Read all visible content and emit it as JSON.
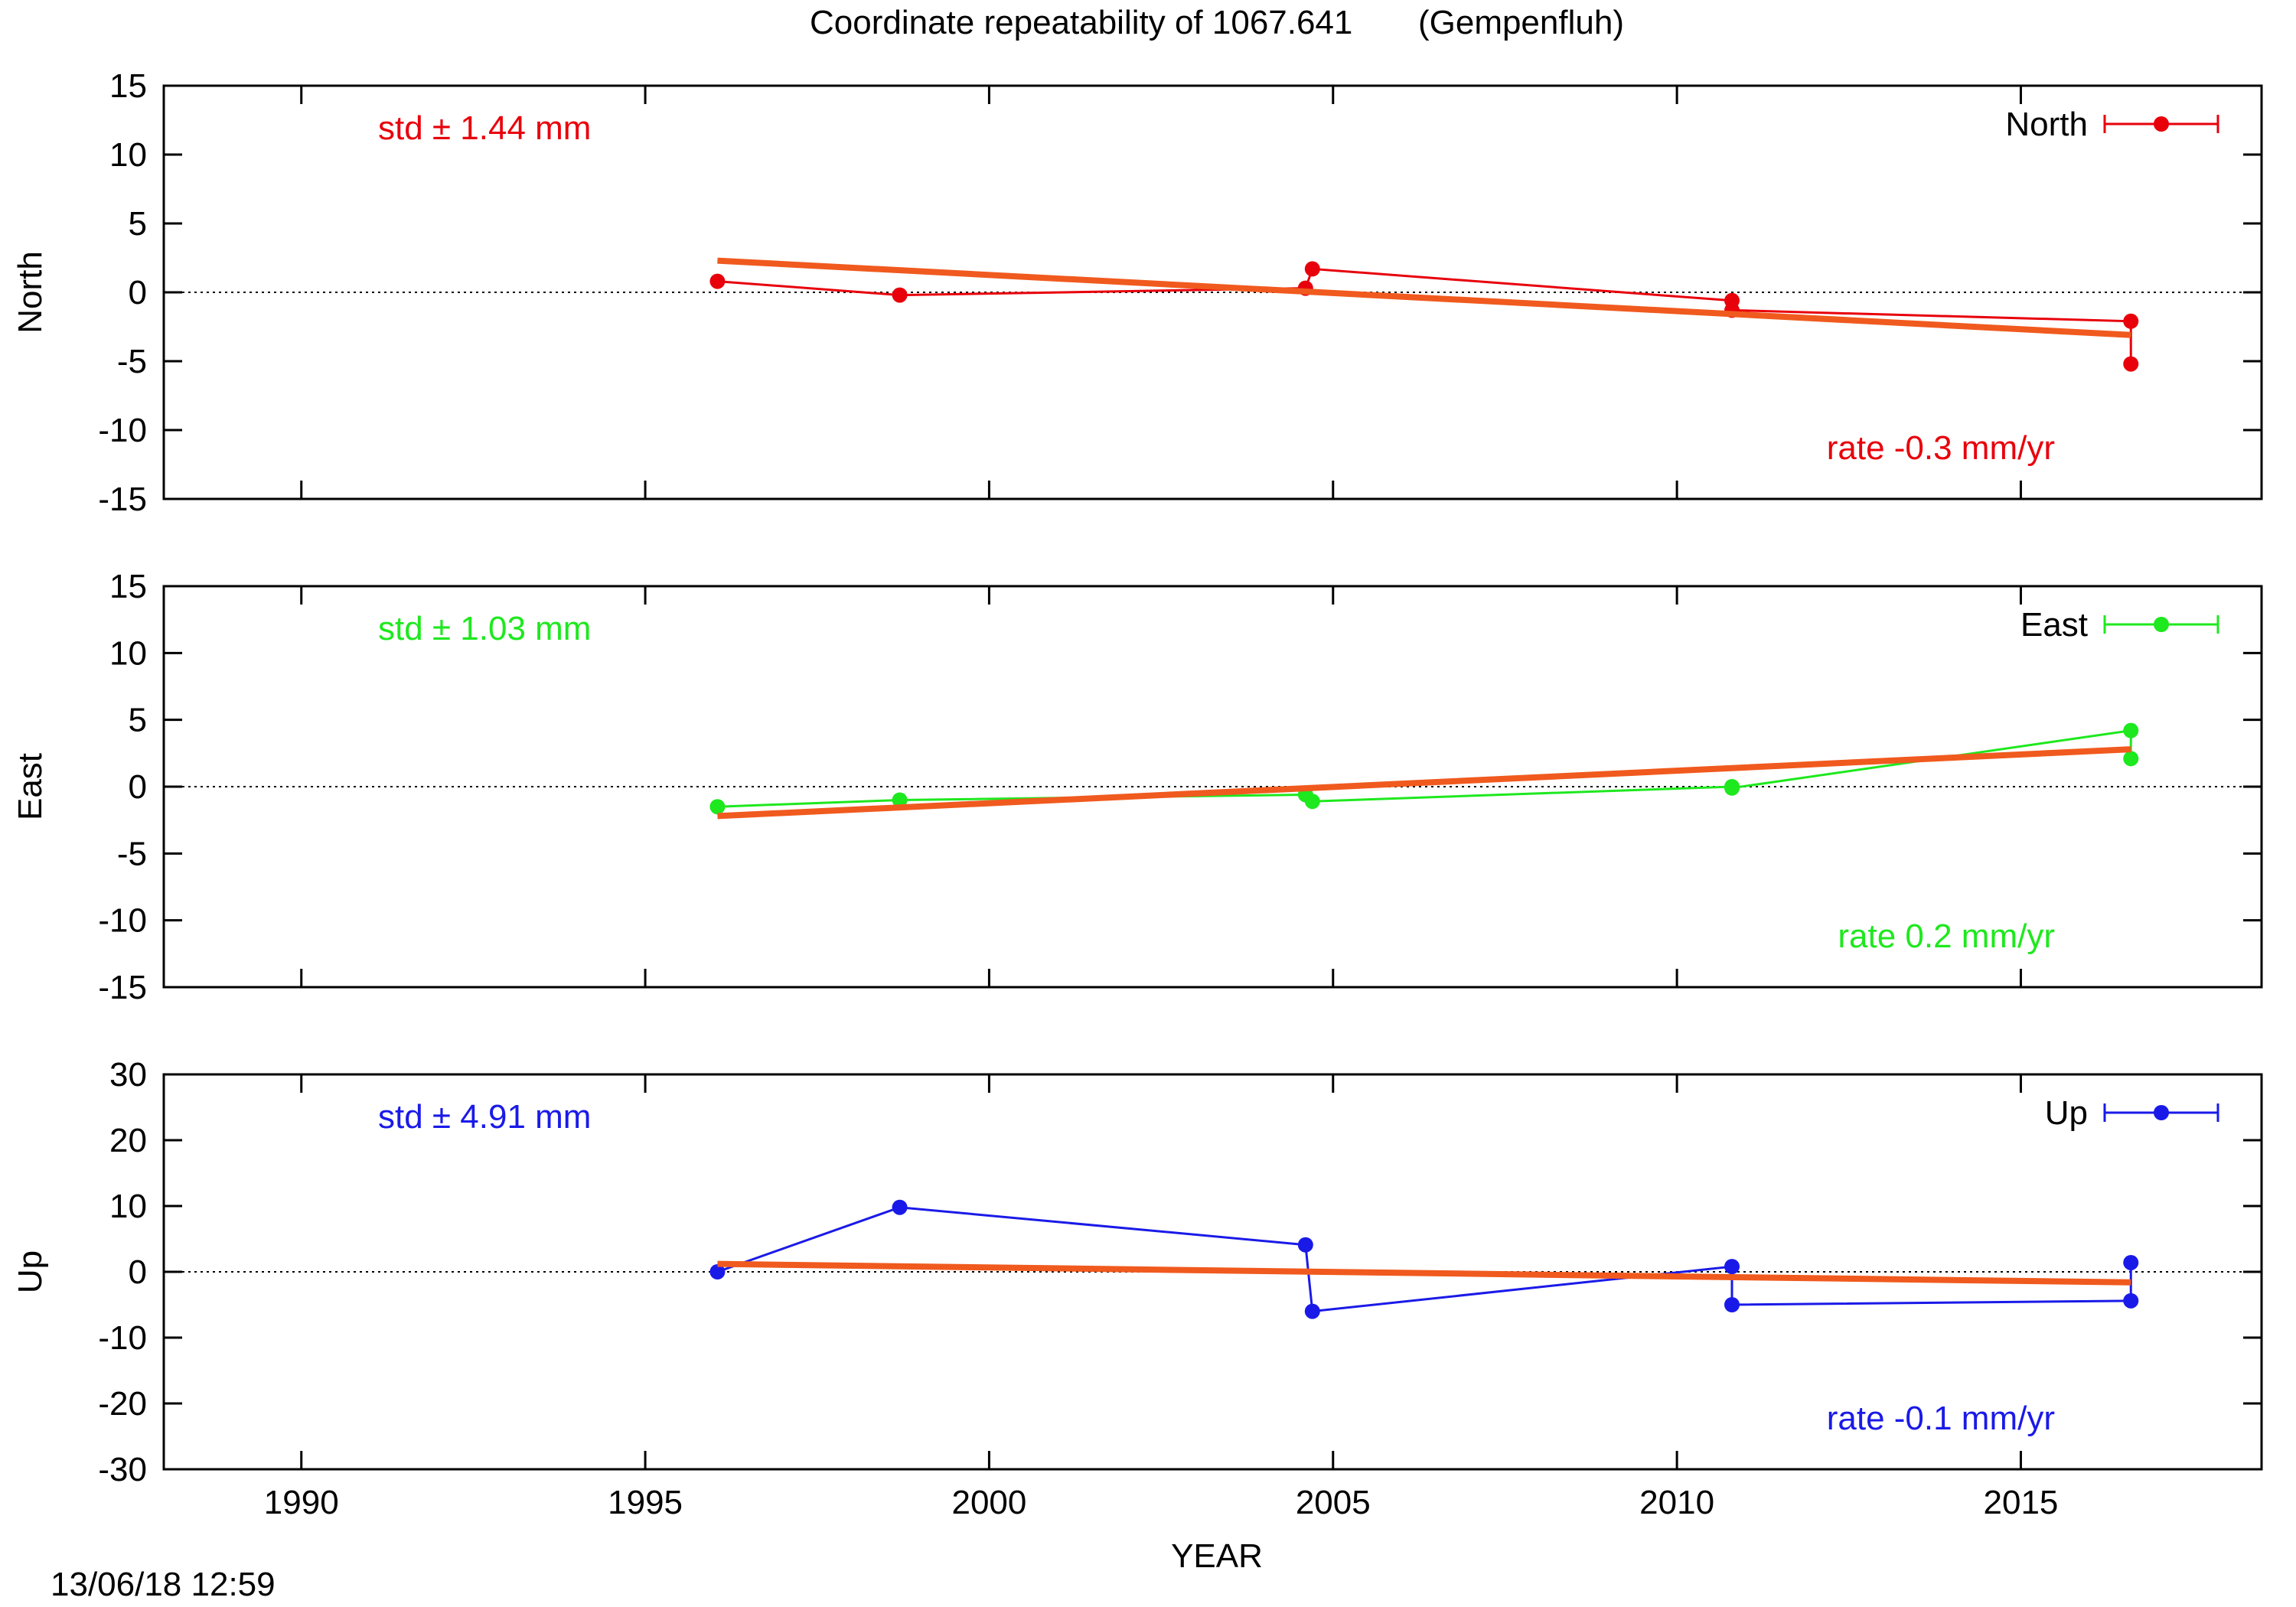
{
  "page": {
    "title": "Coordinate repeatability of 1067.641       (Gempenfluh)",
    "timestamp": "13/06/18 12:59"
  },
  "chart_data": [
    {
      "type": "line",
      "ylabel": "North",
      "xlim": [
        1988,
        2018.5
      ],
      "ylim": [
        -15,
        15
      ],
      "yticks": [
        -15,
        -10,
        -5,
        0,
        5,
        10,
        15
      ],
      "color": "#e8000b",
      "std_label": "std ± 1.44 mm",
      "rate_label": "rate -0.3 mm/yr",
      "legend": "North",
      "legend_position": "top-right",
      "zero_line": true,
      "series": [
        {
          "x": [
            1996.05,
            1998.7,
            2004.6,
            2004.7,
            2010.8,
            2010.8,
            2016.6,
            2016.6
          ],
          "y": [
            0.8,
            -0.2,
            0.3,
            1.7,
            -0.6,
            -1.3,
            -2.1,
            -5.2
          ]
        }
      ],
      "trend": {
        "x": [
          1996.05,
          2016.6
        ],
        "y": [
          2.3,
          -3.1
        ],
        "color": "#f05a1e"
      }
    },
    {
      "type": "line",
      "ylabel": "East",
      "xlim": [
        1988,
        2018.5
      ],
      "ylim": [
        -15,
        15
      ],
      "yticks": [
        -15,
        -10,
        -5,
        0,
        5,
        10,
        15
      ],
      "color": "#1ee81e",
      "std_label": "std ± 1.03 mm",
      "rate_label": "rate  0.2 mm/yr",
      "legend": "East",
      "legend_position": "top-right",
      "zero_line": true,
      "series": [
        {
          "x": [
            1996.05,
            1998.7,
            2004.6,
            2004.7,
            2010.8,
            2010.8,
            2016.6,
            2016.6
          ],
          "y": [
            -1.5,
            -1.0,
            -0.6,
            -1.1,
            0.0,
            -0.1,
            4.2,
            2.1
          ]
        }
      ],
      "trend": {
        "x": [
          1996.05,
          2016.6
        ],
        "y": [
          -2.2,
          2.8
        ],
        "color": "#f05a1e"
      }
    },
    {
      "type": "line",
      "ylabel": "Up",
      "xlabel": "YEAR",
      "xlim": [
        1988,
        2018.5
      ],
      "ylim": [
        -30,
        30
      ],
      "yticks": [
        -30,
        -20,
        -10,
        0,
        10,
        20,
        30
      ],
      "xticks": [
        1990,
        1995,
        2000,
        2005,
        2010,
        2015
      ],
      "color": "#1a1ae8",
      "std_label": "std ± 4.91 mm",
      "rate_label": "rate -0.1 mm/yr",
      "legend": "Up",
      "legend_position": "top-right",
      "zero_line": true,
      "series": [
        {
          "x": [
            1996.05,
            1998.7,
            2004.6,
            2004.7,
            2010.8,
            2010.8,
            2016.6,
            2016.6
          ],
          "y": [
            0.0,
            9.8,
            4.1,
            -6.0,
            0.8,
            -5.0,
            -4.4,
            1.4
          ]
        }
      ],
      "trend": {
        "x": [
          1996.05,
          2016.6
        ],
        "y": [
          1.2,
          -1.6
        ],
        "color": "#f05a1e"
      }
    }
  ]
}
